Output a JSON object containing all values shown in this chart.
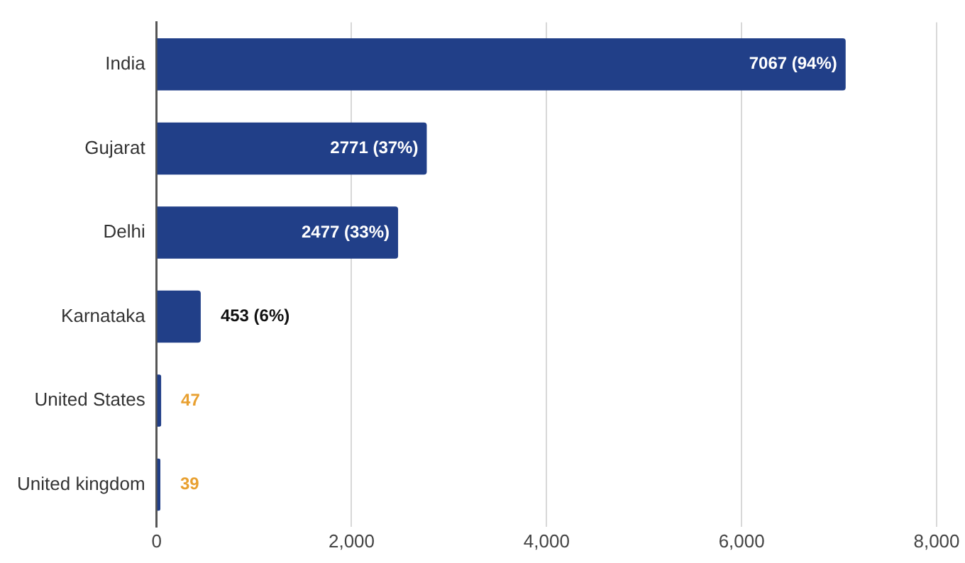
{
  "chart_data": {
    "type": "bar",
    "orientation": "horizontal",
    "categories": [
      "India",
      "Gujarat",
      "Delhi",
      "Karnataka",
      "United States",
      "United kingdom"
    ],
    "values": [
      7067,
      2771,
      2477,
      453,
      47,
      39
    ],
    "value_labels": [
      "7067 (94%)",
      "2771 (37%)",
      "2477 (33%)",
      "453 (6%)",
      "47",
      "39"
    ],
    "color": "#213f88",
    "xlim": [
      0,
      8000
    ],
    "xticks": [
      0,
      {
        "value": 2000,
        "label": "2,000"
      },
      {
        "value": 4000,
        "label": "4,000"
      },
      {
        "value": 6000,
        "label": "6,000"
      },
      {
        "value": 8000,
        "label": "8,000"
      }
    ],
    "grid": "x",
    "legend": false
  }
}
